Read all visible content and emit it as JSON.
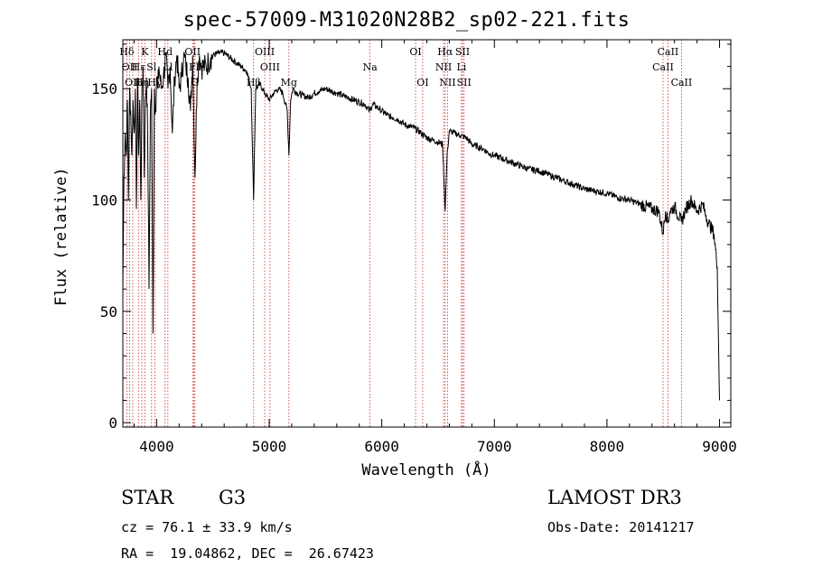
{
  "chart_data": {
    "type": "line",
    "title": "spec-57009-M31020N28B2_sp02-221.fits",
    "xlabel": "Wavelength (Å)",
    "ylabel": "Flux (relative)",
    "xlim": [
      3700,
      9100
    ],
    "ylim": [
      -2,
      172
    ],
    "xticks": [
      4000,
      5000,
      6000,
      7000,
      8000,
      9000
    ],
    "yticks": [
      0,
      50,
      100,
      150
    ],
    "series": [
      {
        "name": "spectrum",
        "x": [
          3700,
          3710,
          3720,
          3730,
          3740,
          3750,
          3760,
          3770,
          3780,
          3790,
          3800,
          3810,
          3820,
          3830,
          3840,
          3850,
          3860,
          3870,
          3880,
          3890,
          3900,
          3910,
          3920,
          3933,
          3945,
          3955,
          3968,
          3980,
          3990,
          4000,
          4010,
          4020,
          4040,
          4060,
          4080,
          4100,
          4120,
          4140,
          4160,
          4180,
          4200,
          4220,
          4240,
          4260,
          4280,
          4300,
          4320,
          4340,
          4360,
          4380,
          4400,
          4420,
          4440,
          4460,
          4480,
          4500,
          4550,
          4600,
          4650,
          4700,
          4750,
          4800,
          4840,
          4861,
          4880,
          4920,
          4960,
          5000,
          5040,
          5080,
          5120,
          5160,
          5175,
          5190,
          5210,
          5250,
          5300,
          5350,
          5400,
          5450,
          5500,
          5550,
          5600,
          5650,
          5700,
          5750,
          5800,
          5850,
          5890,
          5920,
          5950,
          6000,
          6050,
          6100,
          6150,
          6200,
          6250,
          6300,
          6350,
          6400,
          6450,
          6500,
          6540,
          6563,
          6580,
          6600,
          6650,
          6700,
          6750,
          6800,
          6850,
          6900,
          6950,
          7000,
          7100,
          7200,
          7300,
          7400,
          7500,
          7600,
          7700,
          7800,
          7900,
          8000,
          8100,
          8200,
          8300,
          8400,
          8460,
          8498,
          8520,
          8542,
          8560,
          8600,
          8662,
          8700,
          8750,
          8800,
          8850,
          8880,
          8900,
          8950,
          8980,
          9000
        ],
        "values": [
          60,
          110,
          130,
          120,
          145,
          100,
          150,
          140,
          120,
          145,
          130,
          150,
          96,
          155,
          120,
          145,
          100,
          150,
          160,
          110,
          145,
          155,
          130,
          60,
          140,
          150,
          40,
          150,
          140,
          155,
          150,
          160,
          150,
          155,
          165,
          150,
          160,
          130,
          155,
          165,
          150,
          155,
          165,
          160,
          155,
          140,
          165,
          110,
          155,
          165,
          160,
          160,
          160,
          162,
          164,
          165,
          166,
          166,
          164,
          162,
          160,
          158,
          150,
          100,
          150,
          152,
          148,
          145,
          148,
          150,
          148,
          140,
          120,
          145,
          150,
          148,
          147,
          146,
          148,
          149,
          150,
          149,
          148,
          147,
          146,
          145,
          144,
          143,
          140,
          143,
          142,
          140,
          138,
          137,
          136,
          134,
          133,
          132,
          130,
          128,
          127,
          126,
          125,
          95,
          120,
          131,
          130,
          129,
          128,
          125,
          124,
          123,
          121,
          120,
          118,
          116,
          114,
          113,
          111,
          109,
          107,
          105,
          104,
          103,
          101,
          100,
          98,
          96,
          95,
          85,
          95,
          90,
          95,
          97,
          90,
          96,
          100,
          95,
          98,
          93,
          90,
          85,
          70,
          10
        ]
      }
    ],
    "lines": [
      {
        "label": "Hδ",
        "x": 3735,
        "row": 1
      },
      {
        "label": "OII",
        "x": 3760,
        "row": 2
      },
      {
        "label": "OII",
        "x": 3788,
        "row": 3
      },
      {
        "label": "Hε",
        "x": 3839,
        "row": 2
      },
      {
        "label": "Hη",
        "x": 3868,
        "row": 3
      },
      {
        "label": "K",
        "x": 3895,
        "row": 1
      },
      {
        "label": "Sl",
        "x": 3955,
        "row": 2
      },
      {
        "label": "Hγ",
        "x": 3984,
        "row": 3
      },
      {
        "label": "Hd",
        "x": 4075,
        "row": 1
      },
      {
        "label": "Ll",
        "x": 4100,
        "row": 2
      },
      {
        "label": "OII",
        "x": 4320,
        "row": 1
      },
      {
        "label": "Fl",
        "x": 4330,
        "row": 2
      },
      {
        "label": "G",
        "x": 4340,
        "row": 3
      },
      {
        "label": "Hβ",
        "x": 4862,
        "row": 3
      },
      {
        "label": "OIII",
        "x": 4960,
        "row": 1
      },
      {
        "label": "OIII",
        "x": 5007,
        "row": 2
      },
      {
        "label": "Mg",
        "x": 5175,
        "row": 3
      },
      {
        "label": "Na",
        "x": 5895,
        "row": 2
      },
      {
        "label": "OI",
        "x": 6300,
        "row": 1
      },
      {
        "label": "OI",
        "x": 6363,
        "row": 3
      },
      {
        "label": "Hα",
        "x": 6563,
        "row": 1
      },
      {
        "label": "NII",
        "x": 6549,
        "row": 2
      },
      {
        "label": "NII",
        "x": 6584,
        "row": 3
      },
      {
        "label": "SII",
        "x": 6717,
        "row": 1
      },
      {
        "label": "Li",
        "x": 6708,
        "row": 2
      },
      {
        "label": "SII",
        "x": 6731,
        "row": 3
      },
      {
        "label": "CaII",
        "x": 8498,
        "row": 2
      },
      {
        "label": "CaII",
        "x": 8542,
        "row": 1
      },
      {
        "label": "CaII",
        "x": 8662,
        "row": 3
      }
    ]
  },
  "info": {
    "class": "STAR",
    "subclass": "G3",
    "survey": "LAMOST DR3",
    "cz": "cz = 76.1 ± 33.9 km/s",
    "obsdate": "Obs-Date: 20141217",
    "radec": "RA =  19.04862, DEC =  26.67423"
  }
}
